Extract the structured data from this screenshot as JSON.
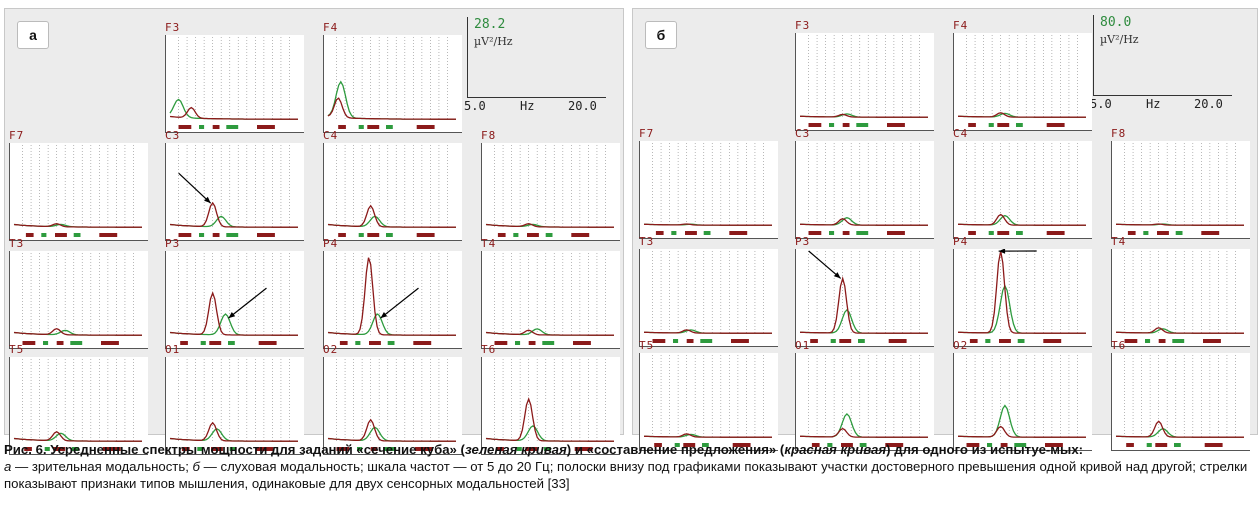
{
  "panels": [
    {
      "tag": "а",
      "scale": {
        "max": "28.2",
        "unit": "µV²/Hz",
        "x_start": "5.0",
        "x_unit": "Hz",
        "x_end": "20.0"
      }
    },
    {
      "tag": "б",
      "scale": {
        "max": "80.0",
        "unit": "µV²/Hz",
        "x_start": "5.0",
        "x_unit": "Hz",
        "x_end": "20.0"
      }
    }
  ],
  "caption": {
    "line1_prefix": "Рис. 6. Усредненные спектры мощности для заданий «сечение куба» (",
    "green_curve": "зеленая кривая",
    "line1_mid": ") и «составление предложения» (",
    "red_curve": "красная кривая",
    "line1_suffix": ") для одного из испытуе-мых:",
    "a_letter": "а",
    "a_text": " — зрительная модальность; ",
    "b_letter": "б",
    "b_text": " — слуховая модальность; шкала частот — от 5 до 20 Гц; полоски внизу под графиками показывают участки достоверного превышения одной кривой над другой; стрелки показывают признаки типов мышления, одинаковые для двух сенсорных модальностей [33]"
  },
  "colors": {
    "green": "#2e9b3e",
    "red": "#8b1a1a",
    "grid": "#9a9a9a"
  },
  "chart_data": [
    {
      "type": "line",
      "panel": "а",
      "x_range_hz": [
        5,
        20
      ],
      "y_max": 28.2,
      "y_unit": "µV²/Hz",
      "grid": true,
      "series_colors": {
        "green": "зеленая кривая — «сечение куба»",
        "red": "красная кривая — «составление предложения»"
      },
      "channels": [
        {
          "name": "F3",
          "red_peak_hz": 7.5,
          "red_peak": 3.5,
          "green_peak_hz": 6.0,
          "green_peak": 6.0,
          "arrow": false
        },
        {
          "name": "F4",
          "red_peak_hz": 6.2,
          "red_peak": 6.5,
          "green_peak_hz": 6.5,
          "green_peak": 12.0,
          "arrow": false
        },
        {
          "name": "F7",
          "red_peak_hz": 10.0,
          "red_peak": 1.0,
          "green_peak_hz": 10.5,
          "green_peak": 0.8,
          "arrow": false
        },
        {
          "name": "C3",
          "red_peak_hz": 10.0,
          "red_peak": 8.0,
          "green_peak_hz": 11.0,
          "green_peak": 3.5,
          "arrow": true
        },
        {
          "name": "C4",
          "red_peak_hz": 10.0,
          "red_peak": 7.0,
          "green_peak_hz": 10.5,
          "green_peak": 3.5,
          "arrow": false
        },
        {
          "name": "F8",
          "red_peak_hz": 10.0,
          "red_peak": 1.0,
          "green_peak_hz": 10.5,
          "green_peak": 0.8,
          "arrow": false
        },
        {
          "name": "T3",
          "red_peak_hz": 10.0,
          "red_peak": 2.0,
          "green_peak_hz": 11.0,
          "green_peak": 1.5,
          "arrow": false
        },
        {
          "name": "P3",
          "red_peak_hz": 10.0,
          "red_peak": 14.0,
          "green_peak_hz": 11.5,
          "green_peak": 7.0,
          "arrow": true
        },
        {
          "name": "P4",
          "red_peak_hz": 9.8,
          "red_peak": 26.0,
          "green_peak_hz": 10.8,
          "green_peak": 7.0,
          "arrow": true
        },
        {
          "name": "T4",
          "red_peak_hz": 10.0,
          "red_peak": 1.5,
          "green_peak_hz": 11.0,
          "green_peak": 2.0,
          "arrow": false
        },
        {
          "name": "T5",
          "red_peak_hz": 10.0,
          "red_peak": 3.0,
          "green_peak_hz": 10.5,
          "green_peak": 2.5,
          "arrow": false
        },
        {
          "name": "O1",
          "red_peak_hz": 10.0,
          "red_peak": 6.0,
          "green_peak_hz": 10.5,
          "green_peak": 4.0,
          "arrow": false
        },
        {
          "name": "O2",
          "red_peak_hz": 10.0,
          "red_peak": 7.0,
          "green_peak_hz": 10.5,
          "green_peak": 4.5,
          "arrow": false
        },
        {
          "name": "T6",
          "red_peak_hz": 10.0,
          "red_peak": 14.0,
          "green_peak_hz": 10.5,
          "green_peak": 5.0,
          "arrow": false
        }
      ]
    },
    {
      "type": "line",
      "panel": "б",
      "x_range_hz": [
        5,
        20
      ],
      "y_max": 80.0,
      "y_unit": "µV²/Hz",
      "grid": true,
      "series_colors": {
        "green": "зеленая кривая — «сечение куба»",
        "red": "красная кривая — «составление предложения»"
      },
      "channels": [
        {
          "name": "F3",
          "red_peak_hz": 10.0,
          "red_peak": 2.5,
          "green_peak_hz": 10.5,
          "green_peak": 3.0,
          "arrow": false
        },
        {
          "name": "F4",
          "red_peak_hz": 10.0,
          "red_peak": 4.0,
          "green_peak_hz": 10.5,
          "green_peak": 3.5,
          "arrow": false
        },
        {
          "name": "F7",
          "red_peak_hz": 10.0,
          "red_peak": 1.0,
          "green_peak_hz": 10.5,
          "green_peak": 0.8,
          "arrow": false
        },
        {
          "name": "C3",
          "red_peak_hz": 10.0,
          "red_peak": 6.0,
          "green_peak_hz": 10.5,
          "green_peak": 7.0,
          "arrow": false
        },
        {
          "name": "C4",
          "red_peak_hz": 10.0,
          "red_peak": 10.0,
          "green_peak_hz": 10.5,
          "green_peak": 9.0,
          "arrow": false
        },
        {
          "name": "F8",
          "red_peak_hz": 10.0,
          "red_peak": 1.0,
          "green_peak_hz": 10.5,
          "green_peak": 1.0,
          "arrow": false
        },
        {
          "name": "T3",
          "red_peak_hz": 10.0,
          "red_peak": 3.0,
          "green_peak_hz": 10.5,
          "green_peak": 3.0,
          "arrow": false
        },
        {
          "name": "P3",
          "red_peak_hz": 10.0,
          "red_peak": 52.0,
          "green_peak_hz": 10.5,
          "green_peak": 22.0,
          "arrow": true
        },
        {
          "name": "P4",
          "red_peak_hz": 10.0,
          "red_peak": 78.0,
          "green_peak_hz": 10.5,
          "green_peak": 45.0,
          "arrow": true
        },
        {
          "name": "T4",
          "red_peak_hz": 10.0,
          "red_peak": 5.0,
          "green_peak_hz": 10.5,
          "green_peak": 4.0,
          "arrow": false
        },
        {
          "name": "T5",
          "red_peak_hz": 10.0,
          "red_peak": 3.0,
          "green_peak_hz": 10.5,
          "green_peak": 2.5,
          "arrow": false
        },
        {
          "name": "O1",
          "red_peak_hz": 10.0,
          "red_peak": 8.0,
          "green_peak_hz": 10.5,
          "green_peak": 22.0,
          "arrow": false
        },
        {
          "name": "O2",
          "red_peak_hz": 10.0,
          "red_peak": 10.0,
          "green_peak_hz": 10.5,
          "green_peak": 30.0,
          "arrow": false
        },
        {
          "name": "T6",
          "red_peak_hz": 10.0,
          "red_peak": 15.0,
          "green_peak_hz": 10.5,
          "green_peak": 8.0,
          "arrow": false
        }
      ]
    }
  ]
}
